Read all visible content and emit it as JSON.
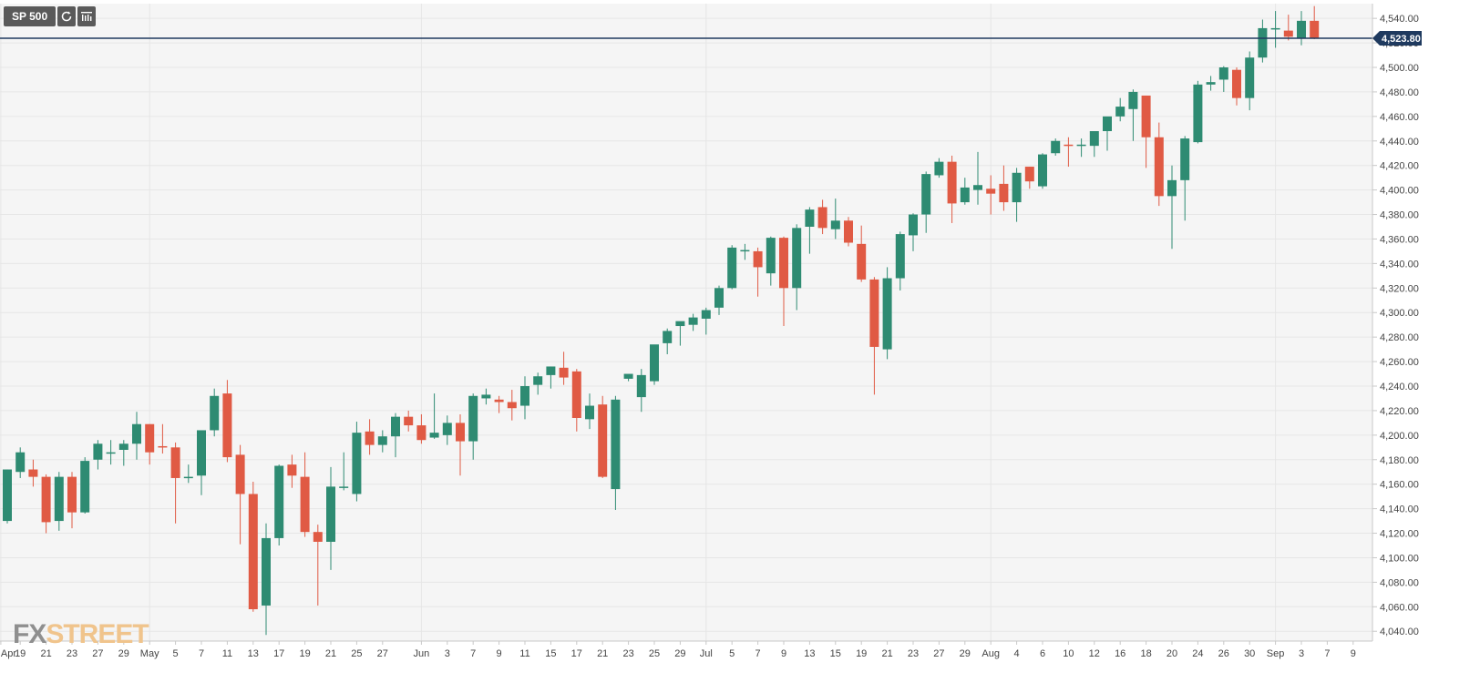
{
  "toolbar": {
    "symbol": "SP 500",
    "refresh_icon": "refresh-icon",
    "settings_icon": "chart-settings-icon"
  },
  "logo": {
    "part1": "FX",
    "part2": "STREET"
  },
  "colors": {
    "up": "#2e8b72",
    "down": "#e05a44",
    "price_line": "#1f3a5f",
    "grid": "#e6e6e6",
    "plot_bg": "#f5f5f5"
  },
  "chart_data": {
    "type": "candlestick",
    "title": "",
    "ylim": [
      4032,
      4552
    ],
    "y_ticks": [
      4040,
      4060,
      4080,
      4100,
      4120,
      4140,
      4160,
      4180,
      4200,
      4220,
      4240,
      4260,
      4280,
      4300,
      4320,
      4340,
      4360,
      4380,
      4400,
      4420,
      4440,
      4460,
      4480,
      4500,
      4520,
      4540
    ],
    "y_tick_labels": [
      "4,040.00",
      "4,060.00",
      "4,080.00",
      "4,100.00",
      "4,120.00",
      "4,140.00",
      "4,160.00",
      "4,180.00",
      "4,200.00",
      "4,220.00",
      "4,240.00",
      "4,260.00",
      "4,280.00",
      "4,300.00",
      "4,320.00",
      "4,340.00",
      "4,360.00",
      "4,380.00",
      "4,400.00",
      "4,420.00",
      "4,440.00",
      "4,460.00",
      "4,480.00",
      "4,500.00",
      "4,520.00",
      "4,540.00"
    ],
    "x_labels": [
      "Apr",
      "19",
      "21",
      "23",
      "27",
      "29",
      "May",
      "5",
      "7",
      "11",
      "13",
      "17",
      "19",
      "21",
      "25",
      "27",
      "Jun",
      "3",
      "7",
      "9",
      "11",
      "15",
      "17",
      "21",
      "23",
      "25",
      "29",
      "Jul",
      "5",
      "7",
      "9",
      "13",
      "15",
      "19",
      "21",
      "23",
      "27",
      "29",
      "Aug",
      "4",
      "6",
      "10",
      "12",
      "16",
      "18",
      "20",
      "24",
      "26",
      "30",
      "Sep",
      "3",
      "7",
      "9"
    ],
    "x_label_index": [
      -0.5,
      1,
      3,
      5,
      7,
      9,
      11,
      13,
      15,
      17,
      19,
      21,
      23,
      25,
      27,
      29,
      32,
      34,
      36,
      38,
      40,
      42,
      44,
      46,
      48,
      50,
      52,
      54,
      56,
      58,
      60,
      62,
      64,
      66,
      68,
      70,
      72,
      74,
      76,
      78,
      80,
      82,
      84,
      86,
      88,
      90,
      92,
      94,
      96,
      98,
      100,
      102,
      104
    ],
    "last_price": 4523.8,
    "last_price_label": "4,523.80",
    "candles": [
      {
        "o": 4130,
        "h": 4172,
        "l": 4128,
        "c": 4172
      },
      {
        "o": 4170,
        "h": 4190,
        "l": 4165,
        "c": 4186
      },
      {
        "o": 4172,
        "h": 4180,
        "l": 4158,
        "c": 4166
      },
      {
        "o": 4166,
        "h": 4168,
        "l": 4120,
        "c": 4129
      },
      {
        "o": 4130,
        "h": 4170,
        "l": 4122,
        "c": 4166
      },
      {
        "o": 4166,
        "h": 4170,
        "l": 4124,
        "c": 4137
      },
      {
        "o": 4137,
        "h": 4182,
        "l": 4136,
        "c": 4179
      },
      {
        "o": 4180,
        "h": 4196,
        "l": 4172,
        "c": 4193
      },
      {
        "o": 4186,
        "h": 4196,
        "l": 4176,
        "c": 4186
      },
      {
        "o": 4188,
        "h": 4196,
        "l": 4175,
        "c": 4193
      },
      {
        "o": 4193,
        "h": 4219,
        "l": 4180,
        "c": 4209
      },
      {
        "o": 4209,
        "h": 4209,
        "l": 4176,
        "c": 4186
      },
      {
        "o": 4191,
        "h": 4209,
        "l": 4185,
        "c": 4190
      },
      {
        "o": 4190,
        "h": 4194,
        "l": 4128,
        "c": 4165
      },
      {
        "o": 4166,
        "h": 4176,
        "l": 4161,
        "c": 4166
      },
      {
        "o": 4167,
        "h": 4204,
        "l": 4151,
        "c": 4204
      },
      {
        "o": 4204,
        "h": 4238,
        "l": 4199,
        "c": 4232
      },
      {
        "o": 4234,
        "h": 4245,
        "l": 4178,
        "c": 4182
      },
      {
        "o": 4184,
        "h": 4192,
        "l": 4111,
        "c": 4152
      },
      {
        "o": 4152,
        "h": 4162,
        "l": 4056,
        "c": 4058
      },
      {
        "o": 4061,
        "h": 4128,
        "l": 4037,
        "c": 4116
      },
      {
        "o": 4116,
        "h": 4176,
        "l": 4110,
        "c": 4175
      },
      {
        "o": 4176,
        "h": 4184,
        "l": 4157,
        "c": 4167
      },
      {
        "o": 4166,
        "h": 4186,
        "l": 4117,
        "c": 4121
      },
      {
        "o": 4121,
        "h": 4127,
        "l": 4061,
        "c": 4113
      },
      {
        "o": 4113,
        "h": 4174,
        "l": 4090,
        "c": 4158
      },
      {
        "o": 4158,
        "h": 4186,
        "l": 4155,
        "c": 4158
      },
      {
        "o": 4152,
        "h": 4211,
        "l": 4146,
        "c": 4202
      },
      {
        "o": 4203,
        "h": 4213,
        "l": 4184,
        "c": 4192
      },
      {
        "o": 4192,
        "h": 4204,
        "l": 4186,
        "c": 4199
      },
      {
        "o": 4199,
        "h": 4218,
        "l": 4182,
        "c": 4215
      },
      {
        "o": 4215,
        "h": 4220,
        "l": 4203,
        "c": 4208
      },
      {
        "o": 4208,
        "h": 4217,
        "l": 4193,
        "c": 4196
      },
      {
        "o": 4198,
        "h": 4234,
        "l": 4197,
        "c": 4202
      },
      {
        "o": 4200,
        "h": 4216,
        "l": 4192,
        "c": 4210
      },
      {
        "o": 4210,
        "h": 4217,
        "l": 4167,
        "c": 4195
      },
      {
        "o": 4195,
        "h": 4234,
        "l": 4180,
        "c": 4232
      },
      {
        "o": 4230,
        "h": 4238,
        "l": 4225,
        "c": 4233
      },
      {
        "o": 4229,
        "h": 4232,
        "l": 4218,
        "c": 4227
      },
      {
        "o": 4227,
        "h": 4237,
        "l": 4212,
        "c": 4222
      },
      {
        "o": 4224,
        "h": 4248,
        "l": 4213,
        "c": 4240
      },
      {
        "o": 4241,
        "h": 4251,
        "l": 4233,
        "c": 4248
      },
      {
        "o": 4249,
        "h": 4256,
        "l": 4238,
        "c": 4256
      },
      {
        "o": 4255,
        "h": 4268,
        "l": 4241,
        "c": 4247
      },
      {
        "o": 4252,
        "h": 4254,
        "l": 4203,
        "c": 4214
      },
      {
        "o": 4213,
        "h": 4234,
        "l": 4205,
        "c": 4224
      },
      {
        "o": 4225,
        "h": 4232,
        "l": 4165,
        "c": 4166
      },
      {
        "o": 4156,
        "h": 4232,
        "l": 4139,
        "c": 4229
      },
      {
        "o": 4246,
        "h": 4248,
        "l": 4244,
        "c": 4250
      },
      {
        "o": 4231,
        "h": 4254,
        "l": 4219,
        "c": 4249
      },
      {
        "o": 4244,
        "h": 4272,
        "l": 4241,
        "c": 4274
      },
      {
        "o": 4275,
        "h": 4287,
        "l": 4266,
        "c": 4285
      },
      {
        "o": 4289,
        "h": 4292,
        "l": 4273,
        "c": 4293
      },
      {
        "o": 4290,
        "h": 4299,
        "l": 4285,
        "c": 4296
      },
      {
        "o": 4295,
        "h": 4304,
        "l": 4282,
        "c": 4302
      },
      {
        "o": 4304,
        "h": 4322,
        "l": 4298,
        "c": 4320
      },
      {
        "o": 4320,
        "h": 4355,
        "l": 4319,
        "c": 4353
      },
      {
        "o": 4350,
        "h": 4356,
        "l": 4343,
        "c": 4351
      },
      {
        "o": 4350,
        "h": 4353,
        "l": 4313,
        "c": 4337
      },
      {
        "o": 4332,
        "h": 4362,
        "l": 4322,
        "c": 4361
      },
      {
        "o": 4361,
        "h": 4362,
        "l": 4289,
        "c": 4320
      },
      {
        "o": 4320,
        "h": 4372,
        "l": 4302,
        "c": 4369
      },
      {
        "o": 4370,
        "h": 4386,
        "l": 4348,
        "c": 4384
      },
      {
        "o": 4386,
        "h": 4392,
        "l": 4364,
        "c": 4369
      },
      {
        "o": 4368,
        "h": 4393,
        "l": 4360,
        "c": 4375
      },
      {
        "o": 4375,
        "h": 4378,
        "l": 4354,
        "c": 4357
      },
      {
        "o": 4356,
        "h": 4371,
        "l": 4325,
        "c": 4327
      },
      {
        "o": 4327,
        "h": 4329,
        "l": 4233,
        "c": 4272
      },
      {
        "o": 4270,
        "h": 4337,
        "l": 4262,
        "c": 4328
      },
      {
        "o": 4328,
        "h": 4366,
        "l": 4318,
        "c": 4364
      },
      {
        "o": 4363,
        "h": 4381,
        "l": 4350,
        "c": 4380
      },
      {
        "o": 4380,
        "h": 4415,
        "l": 4365,
        "c": 4413
      },
      {
        "o": 4412,
        "h": 4426,
        "l": 4410,
        "c": 4423
      },
      {
        "o": 4423,
        "h": 4428,
        "l": 4373,
        "c": 4389
      },
      {
        "o": 4390,
        "h": 4410,
        "l": 4388,
        "c": 4402
      },
      {
        "o": 4400,
        "h": 4431,
        "l": 4388,
        "c": 4404
      },
      {
        "o": 4401,
        "h": 4412,
        "l": 4380,
        "c": 4397
      },
      {
        "o": 4405,
        "h": 4420,
        "l": 4383,
        "c": 4390
      },
      {
        "o": 4390,
        "h": 4418,
        "l": 4374,
        "c": 4414
      },
      {
        "o": 4419,
        "h": 4419,
        "l": 4401,
        "c": 4407
      },
      {
        "o": 4403,
        "h": 4430,
        "l": 4401,
        "c": 4429
      },
      {
        "o": 4430,
        "h": 4442,
        "l": 4428,
        "c": 4440
      },
      {
        "o": 4437,
        "h": 4443,
        "l": 4419,
        "c": 4436
      },
      {
        "o": 4437,
        "h": 4442,
        "l": 4427,
        "c": 4437
      },
      {
        "o": 4436,
        "h": 4447,
        "l": 4427,
        "c": 4448
      },
      {
        "o": 4448,
        "h": 4457,
        "l": 4432,
        "c": 4460
      },
      {
        "o": 4460,
        "h": 4475,
        "l": 4456,
        "c": 4468
      },
      {
        "o": 4466,
        "h": 4482,
        "l": 4440,
        "c": 4480
      },
      {
        "o": 4477,
        "h": 4477,
        "l": 4418,
        "c": 4443
      },
      {
        "o": 4443,
        "h": 4455,
        "l": 4387,
        "c": 4395
      },
      {
        "o": 4395,
        "h": 4420,
        "l": 4352,
        "c": 4408
      },
      {
        "o": 4408,
        "h": 4444,
        "l": 4375,
        "c": 4442
      },
      {
        "o": 4439,
        "h": 4489,
        "l": 4438,
        "c": 4486
      },
      {
        "o": 4486,
        "h": 4493,
        "l": 4481,
        "c": 4488
      },
      {
        "o": 4490,
        "h": 4501,
        "l": 4480,
        "c": 4500
      },
      {
        "o": 4498,
        "h": 4500,
        "l": 4469,
        "c": 4475
      },
      {
        "o": 4475,
        "h": 4513,
        "l": 4465,
        "c": 4508
      },
      {
        "o": 4508,
        "h": 4539,
        "l": 4504,
        "c": 4532
      },
      {
        "o": 4531,
        "h": 4546,
        "l": 4516,
        "c": 4532
      },
      {
        "o": 4530,
        "h": 4543,
        "l": 4522,
        "c": 4525
      },
      {
        "o": 4524,
        "h": 4546,
        "l": 4518,
        "c": 4538
      },
      {
        "o": 4538,
        "h": 4550,
        "l": 4523,
        "c": 4524
      }
    ]
  }
}
